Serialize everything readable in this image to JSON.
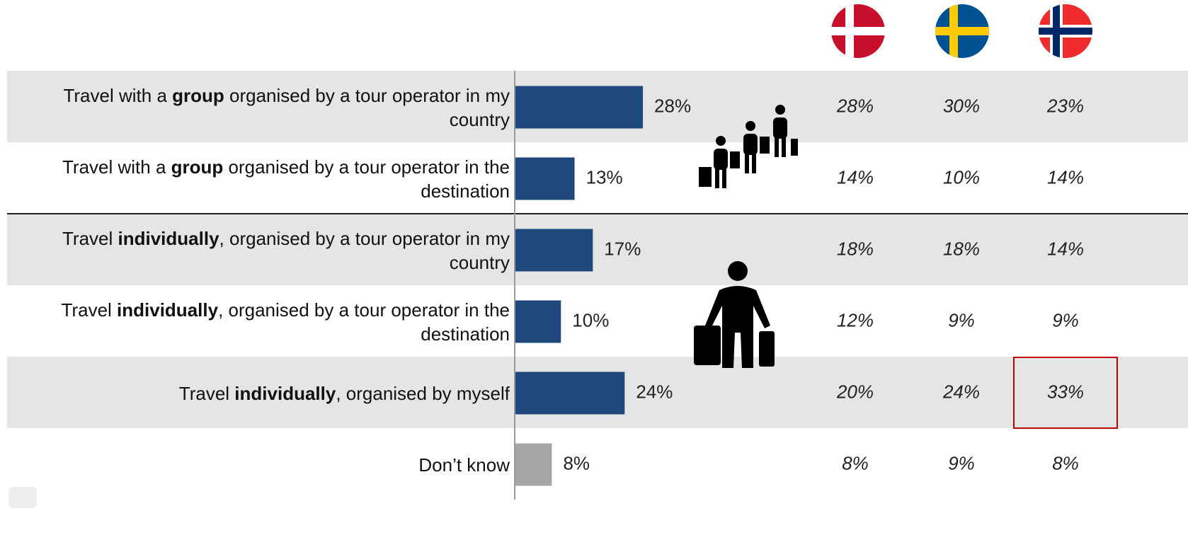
{
  "chart_data": {
    "type": "bar",
    "categories": [
      [
        {
          "text": "Travel with a "
        },
        {
          "text": "group",
          "bold": true
        },
        {
          "text": " organised by a tour operator in my country"
        }
      ],
      [
        {
          "text": "Travel with a "
        },
        {
          "text": "group",
          "bold": true
        },
        {
          "text": " organised by a tour operator in the destination"
        }
      ],
      [
        {
          "text": "Travel "
        },
        {
          "text": "individually",
          "bold": true
        },
        {
          "text": ", organised by a tour operator in my country"
        }
      ],
      [
        {
          "text": "Travel "
        },
        {
          "text": "individually",
          "bold": true
        },
        {
          "text": ", organised by a tour operator in the destination"
        }
      ],
      [
        {
          "text": "Travel "
        },
        {
          "text": "individually",
          "bold": true
        },
        {
          "text": ", organised by myself"
        }
      ],
      [
        {
          "text": "Don’t know"
        }
      ]
    ],
    "values": [
      28,
      13,
      17,
      10,
      24,
      8
    ],
    "value_labels": [
      "28%",
      "13%",
      "17%",
      "10%",
      "24%",
      "8%"
    ],
    "colors": [
      "#1f497d",
      "#1f497d",
      "#1f497d",
      "#1f497d",
      "#1f497d",
      "#a6a6a6"
    ]
  },
  "table": {
    "rows": [
      [
        "28%",
        "30%",
        "23%"
      ],
      [
        "14%",
        "10%",
        "14%"
      ],
      [
        "18%",
        "18%",
        "14%"
      ],
      [
        "12%",
        "9%",
        "9%"
      ],
      [
        "20%",
        "24%",
        "33%"
      ],
      [
        "8%",
        "9%",
        "8%"
      ]
    ]
  }
}
